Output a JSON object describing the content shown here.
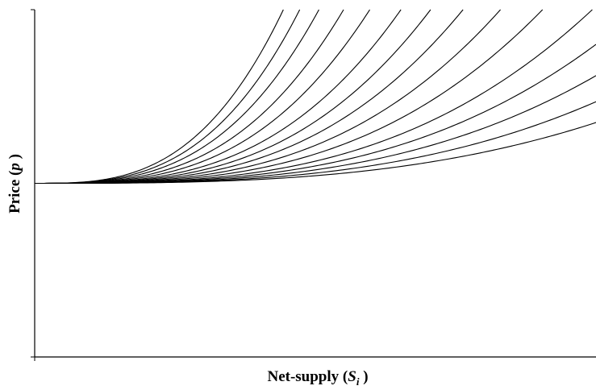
{
  "chart_data": {
    "type": "line",
    "title": "",
    "xlabel": {
      "text": "Net-supply (",
      "var": "S",
      "sub": "i",
      "close": " )"
    },
    "ylabel": {
      "text": "Price (",
      "var": "p",
      "close": " )"
    },
    "xlim": [
      0,
      1
    ],
    "ylim": [
      -1,
      1
    ],
    "grid": false,
    "legend": "none",
    "series": [
      {
        "k": 0.35
      },
      {
        "k": 0.47
      },
      {
        "k": 0.62
      },
      {
        "k": 0.8
      },
      {
        "k": 1.02
      },
      {
        "k": 1.35
      },
      {
        "k": 1.75
      },
      {
        "k": 2.25
      },
      {
        "k": 2.85
      },
      {
        "k": 3.6
      },
      {
        "k": 4.7
      },
      {
        "k": 6.0
      },
      {
        "k": 7.7
      },
      {
        "k": 9.5
      },
      {
        "k": 11.5
      }
    ]
  }
}
